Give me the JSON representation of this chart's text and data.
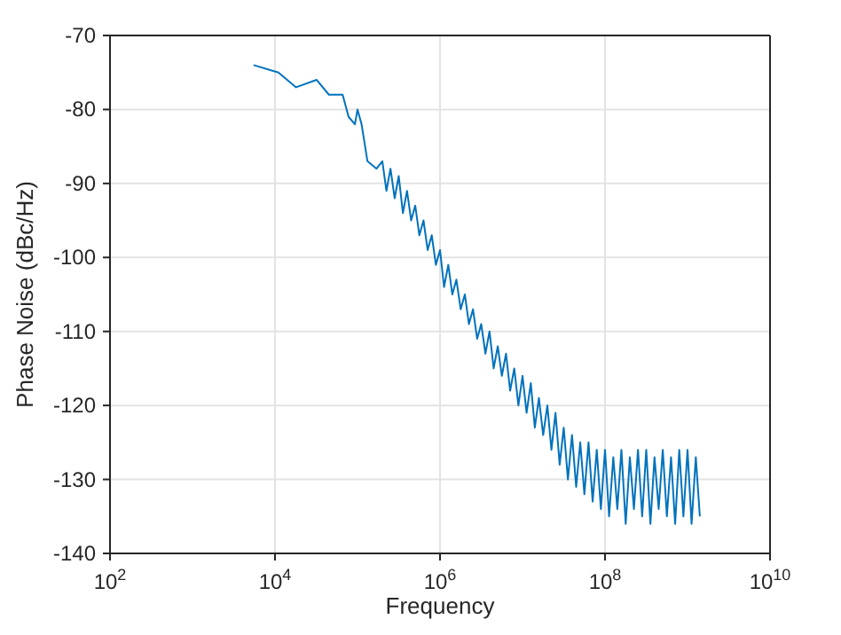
{
  "chart_data": {
    "type": "line",
    "xlabel": "Frequency",
    "ylabel": "Phase Noise (dBc/Hz)",
    "log": "x",
    "grid": true,
    "xlim": [
      100,
      10000000000
    ],
    "xticks": [
      {
        "value": 100,
        "label": "10$^{2}$"
      },
      {
        "value": 10000,
        "label": "10$^{4}$"
      },
      {
        "value": 1000000,
        "label": "10$^{6}$"
      },
      {
        "value": 100000000,
        "label": "10$^{8}$"
      },
      {
        "value": 10000000000,
        "label": "10$^{10}$"
      }
    ],
    "ylim": [
      -140,
      -70
    ],
    "yticks": [
      -140,
      -130,
      -120,
      -110,
      -100,
      -90,
      -80,
      -70
    ],
    "series": [
      {
        "color": "#0072bd",
        "x": [
          5500,
          11000,
          18000,
          32000,
          45000,
          66000,
          78000,
          93000,
          100000,
          112000,
          132000,
          170000,
          200000,
          224000,
          251000,
          282000,
          316000,
          355000,
          398000,
          447000,
          501000,
          562000,
          631000,
          708000,
          794000,
          891000,
          1000000,
          1120000,
          1260000,
          1410000,
          1580000,
          1780000,
          2000000,
          2240000,
          2510000,
          2820000,
          3160000,
          3550000,
          3980000,
          4470000,
          5010000,
          5620000,
          6310000,
          7080000,
          7940000,
          8910000,
          10000000,
          11200000,
          12600000,
          14100000,
          15800000,
          17800000,
          20000000,
          22400000,
          25100000,
          28200000,
          31600000,
          35500000,
          39800000,
          44700000,
          50100000,
          56200000,
          63100000,
          70800000,
          79400000,
          89100000,
          100000000,
          112000000,
          126000000,
          141000000,
          158000000,
          178000000,
          200000000,
          224000000,
          251000000,
          282000000,
          316000000,
          355000000,
          398000000,
          447000000,
          501000000,
          562000000,
          631000000,
          708000000,
          794000000,
          891000000,
          1000000000,
          1120000000,
          1260000000,
          1410000000
        ],
        "values": [
          -74,
          -75,
          -77,
          -76,
          -78,
          -78,
          -81,
          -82,
          -80,
          -82,
          -87,
          -88,
          -87,
          -91,
          -88,
          -92,
          -89,
          -94,
          -91,
          -95,
          -93,
          -97,
          -95,
          -99,
          -97,
          -101,
          -99,
          -104,
          -101,
          -105,
          -103,
          -107,
          -105,
          -109,
          -107,
          -111,
          -109,
          -113,
          -110,
          -115,
          -112,
          -116,
          -113,
          -118,
          -115,
          -120,
          -116,
          -121,
          -117,
          -123,
          -119,
          -124,
          -120,
          -126,
          -121,
          -128,
          -123,
          -130,
          -124,
          -131,
          -125,
          -132,
          -125,
          -133,
          -126,
          -134,
          -126,
          -135,
          -127,
          -134,
          -126,
          -136,
          -127,
          -134,
          -126,
          -135,
          -126,
          -136,
          -127,
          -134,
          -126,
          -135,
          -127,
          -136,
          -126,
          -135,
          -126,
          -136,
          -127,
          -135
        ]
      }
    ]
  }
}
